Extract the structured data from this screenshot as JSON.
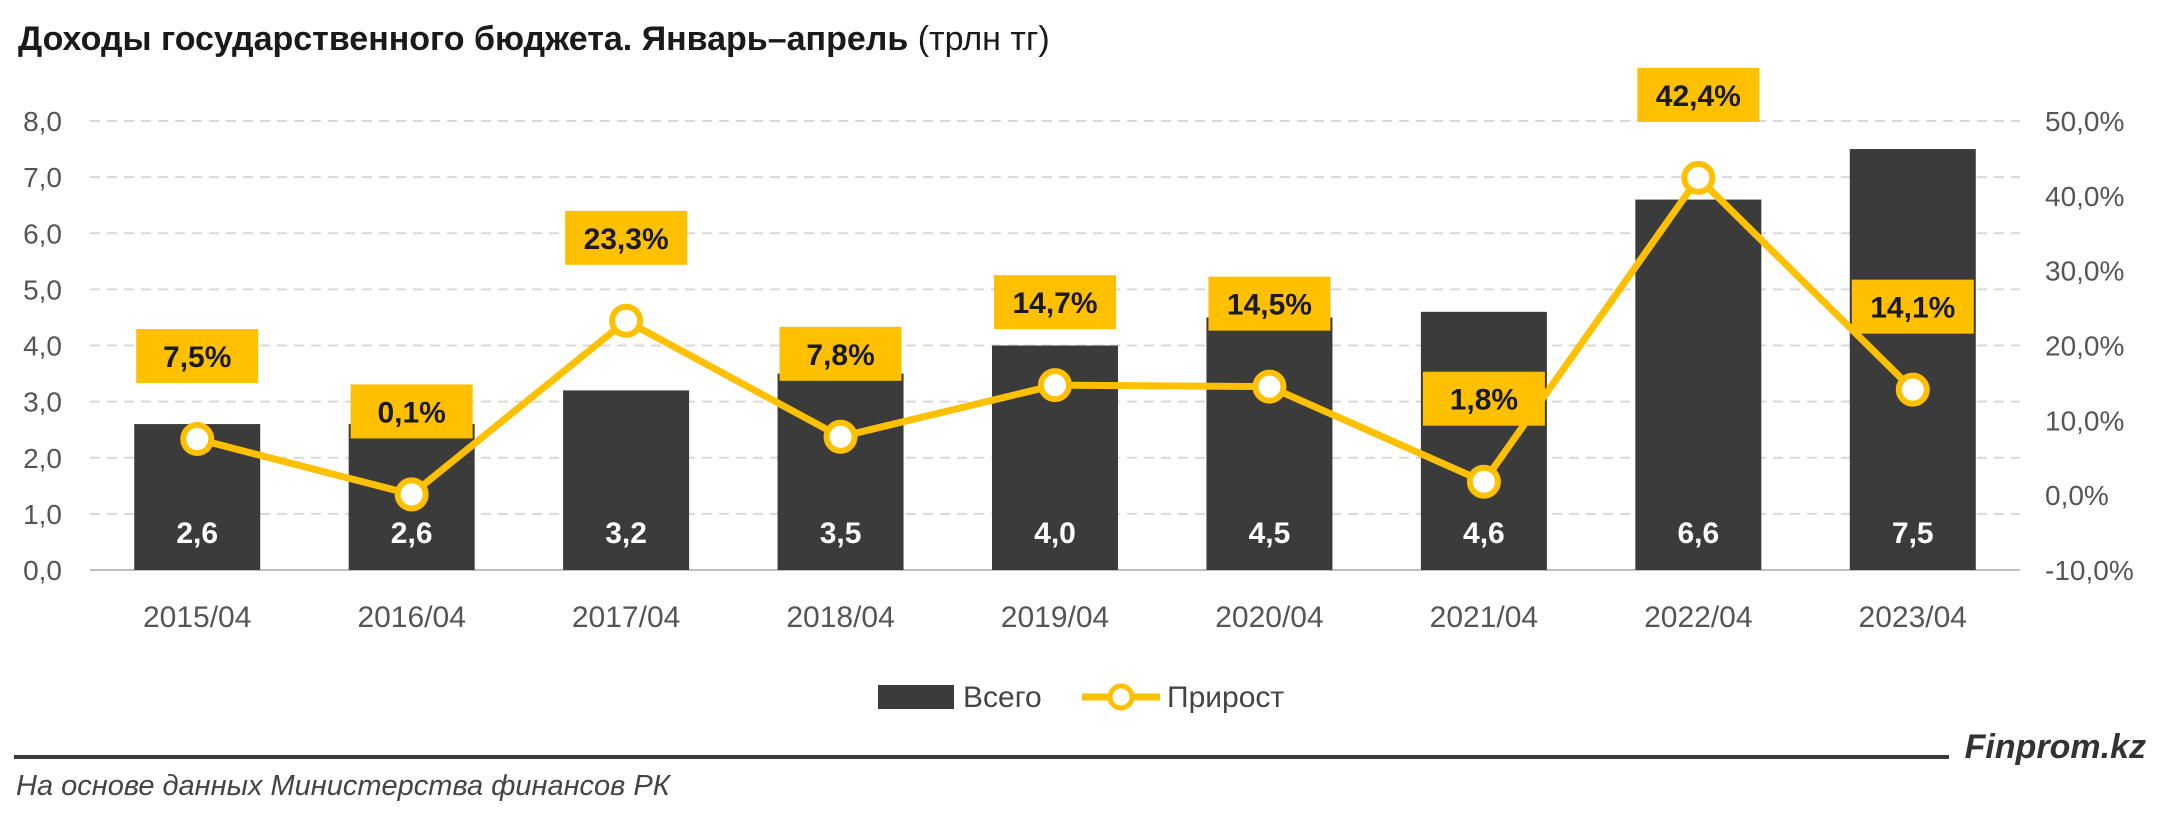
{
  "title": {
    "bold": "Доходы государственного бюджета. Январь–апрель",
    "unit": "(трлн тг)"
  },
  "footer": {
    "brand": "Finprom.kz",
    "source": "На основе данных Министерства финансов РК"
  },
  "colors": {
    "bar": "#3b3b3b",
    "line": "#ffc000",
    "label_bg": "#ffc000",
    "grid": "#d9d9d9"
  },
  "chart_data": {
    "type": "bar",
    "categories": [
      "2015/04",
      "2016/04",
      "2017/04",
      "2018/04",
      "2019/04",
      "2020/04",
      "2021/04",
      "2022/04",
      "2023/04"
    ],
    "series": [
      {
        "name": "Всего",
        "type": "bar",
        "axis": "left",
        "values": [
          2.6,
          2.6,
          3.2,
          3.5,
          4.0,
          4.5,
          4.6,
          6.6,
          7.5
        ],
        "labels": [
          "2,6",
          "2,6",
          "3,2",
          "3,5",
          "4,0",
          "4,5",
          "4,6",
          "6,6",
          "7,5"
        ]
      },
      {
        "name": "Прирост",
        "type": "line",
        "axis": "right",
        "values": [
          7.5,
          0.1,
          23.3,
          7.8,
          14.7,
          14.5,
          1.8,
          42.4,
          14.1
        ],
        "labels": [
          "7,5%",
          "0,1%",
          "23,3%",
          "7,8%",
          "14,7%",
          "14,5%",
          "1,8%",
          "42,4%",
          "14,1%"
        ]
      }
    ],
    "y_left": {
      "ylim": [
        0,
        8
      ],
      "ticks": [
        0,
        1,
        2,
        3,
        4,
        5,
        6,
        7,
        8
      ],
      "tick_labels": [
        "0,0",
        "1,0",
        "2,0",
        "3,0",
        "4,0",
        "5,0",
        "6,0",
        "7,0",
        "8,0"
      ]
    },
    "y_right": {
      "ylim": [
        -10,
        50
      ],
      "ticks": [
        -10,
        0,
        10,
        20,
        30,
        40,
        50
      ],
      "tick_labels": [
        "-10,0%",
        "0,0%",
        "10,0%",
        "20,0%",
        "30,0%",
        "40,0%",
        "50,0%"
      ]
    },
    "grid": true,
    "legend": "bottom-center"
  }
}
